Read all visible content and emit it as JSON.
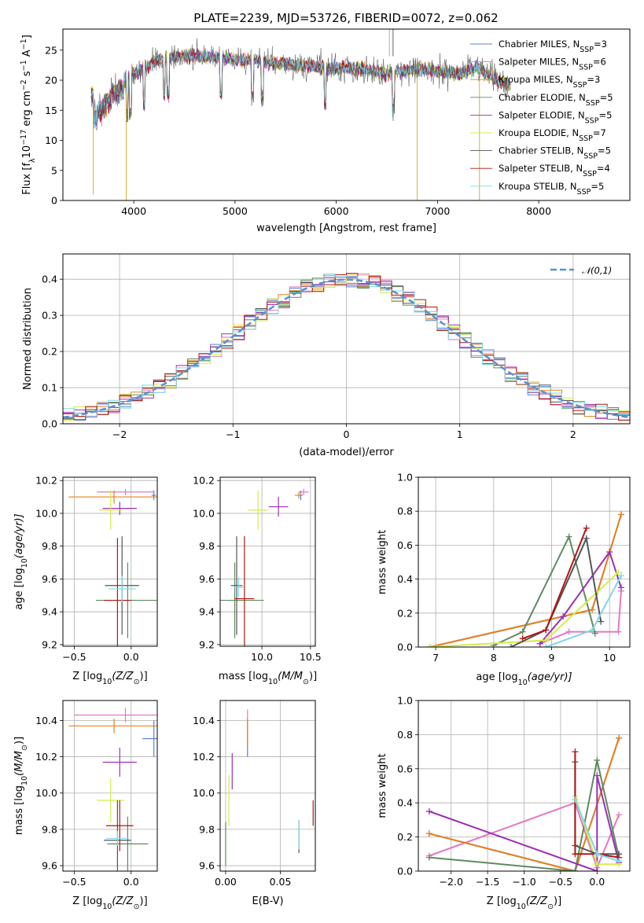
{
  "figure": {
    "title": "PLATE=2239, MJD=53726, FIBERID=0072, z=0.062"
  },
  "colors": {
    "Chabrier MILES": "#5b7fd6",
    "Salpeter MILES": "#e377c2",
    "Kroupa MILES": "#e8821f",
    "Chabrier ELODIE": "#5f8a5f",
    "Salpeter ELODIE": "#9b30b3",
    "Kroupa ELODIE": "#d4ec4a",
    "Chabrier STELIB": "#555555",
    "Salpeter STELIB": "#b01616",
    "Kroupa STELIB": "#7fd8e4"
  },
  "chart_data": [
    {
      "id": "spectrum",
      "type": "line",
      "xlabel": "wavelength [Angstrom, rest frame]",
      "ylabel": "Flux [f",
      "ylabel_sub": "λ",
      "ylabel_rest": "10",
      "ylabel_exp": "−17",
      "ylabel_tail": " erg cm",
      "ylabel_exp2": "−2",
      "ylabel_tail2": " s",
      "ylabel_exp3": "−1",
      "ylabel_tail3": " A",
      "ylabel_exp4": "−1",
      "ylabel_end": "]",
      "xlim": [
        3300,
        8900
      ],
      "ylim": [
        0,
        28.5
      ],
      "xticks": [
        "4000",
        "5000",
        "6000",
        "7000",
        "8000"
      ],
      "xtick_values": [
        4000,
        5000,
        6000,
        7000,
        8000
      ],
      "yticks": [
        "0",
        "5",
        "10",
        "15",
        "20",
        "25"
      ],
      "ytick_values": [
        0,
        5,
        10,
        15,
        20,
        25
      ],
      "continuum": [
        [
          3600,
          15
        ],
        [
          3700,
          17
        ],
        [
          3800,
          19
        ],
        [
          3900,
          20
        ],
        [
          4000,
          21
        ],
        [
          4100,
          22
        ],
        [
          4200,
          23
        ],
        [
          4300,
          23.5
        ],
        [
          4500,
          24
        ],
        [
          4700,
          24
        ],
        [
          5000,
          23.5
        ],
        [
          5300,
          23
        ],
        [
          5600,
          22.5
        ],
        [
          5900,
          22
        ],
        [
          6200,
          22
        ],
        [
          6500,
          21
        ],
        [
          6800,
          22
        ],
        [
          7000,
          21.5
        ],
        [
          7200,
          21
        ],
        [
          7400,
          22
        ],
        [
          7600,
          20
        ],
        [
          7700,
          19
        ]
      ],
      "legend": [
        {
          "model": "Chabrier MILES",
          "label": "Chabrier MILES, N",
          "sub": "SSP",
          "value": "=3"
        },
        {
          "model": "Salpeter MILES",
          "label": "Salpeter MILES, N",
          "sub": "SSP",
          "value": "=6"
        },
        {
          "model": "Kroupa MILES",
          "label": "Kroupa MILES, N",
          "sub": "SSP",
          "value": "=3"
        },
        {
          "model": "Chabrier ELODIE",
          "label": "Chabrier ELODIE, N",
          "sub": "SSP",
          "value": "=5"
        },
        {
          "model": "Salpeter ELODIE",
          "label": "Salpeter ELODIE, N",
          "sub": "SSP",
          "value": "=5"
        },
        {
          "model": "Kroupa ELODIE",
          "label": "Kroupa ELODIE, N",
          "sub": "SSP",
          "value": "=7"
        },
        {
          "model": "Chabrier STELIB",
          "label": "Chabrier STELIB, N",
          "sub": "SSP",
          "value": "=5"
        },
        {
          "model": "Salpeter STELIB",
          "label": "Salpeter STELIB, N",
          "sub": "SSP",
          "value": "=4"
        },
        {
          "model": "Kroupa STELIB",
          "label": "Kroupa STELIB, N",
          "sub": "SSP",
          "value": "=5"
        }
      ]
    },
    {
      "id": "residuals",
      "type": "line",
      "xlabel": "(data-model)/error",
      "ylabel": "Normed distribution",
      "xlim": [
        -2.5,
        2.5
      ],
      "ylim": [
        0,
        0.47
      ],
      "xticks": [
        "−2",
        "−1",
        "0",
        "1",
        "2"
      ],
      "xtick_values": [
        -2,
        -1,
        0,
        1,
        2
      ],
      "yticks": [
        "0.0",
        "0.1",
        "0.2",
        "0.3",
        "0.4"
      ],
      "ytick_values": [
        0,
        0.1,
        0.2,
        0.3,
        0.4
      ],
      "bin_width": 0.1,
      "reference": {
        "label": "𝒩(0,1)",
        "mean": 0,
        "sigma": 1,
        "color": "#5b8fd6"
      }
    },
    {
      "id": "age-vs-Z",
      "type": "scatter",
      "xlabel": "Z [log",
      "xlabel_sub": "10",
      "xlabel_rest": "(Z/Z",
      "xlabel_sub2": "⊙",
      "xlabel_end": ")]",
      "ylabel": "age  [log",
      "ylabel_sub": "10",
      "ylabel_rest": "(age/yr)]",
      "xlim": [
        -0.6,
        0.23
      ],
      "ylim": [
        9.19,
        10.22
      ],
      "xticks": [
        "−0.5",
        "0.0"
      ],
      "xtick_values": [
        -0.5,
        0
      ],
      "yticks": [
        "9.2",
        "9.4",
        "9.6",
        "9.8",
        "10.0",
        "10.2"
      ],
      "ytick_values": [
        9.2,
        9.4,
        9.6,
        9.8,
        10.0,
        10.2
      ],
      "points": [
        {
          "model": "Chabrier MILES",
          "x": 0.2,
          "y": 10.11,
          "xerr": 0.02,
          "yerr": 0.03
        },
        {
          "model": "Salpeter MILES",
          "x": -0.05,
          "y": 10.13,
          "xerr": 0.25,
          "yerr": 0.02
        },
        {
          "model": "Kroupa MILES",
          "x": -0.15,
          "y": 10.1,
          "xerr": 0.4,
          "yerr": 0.04
        },
        {
          "model": "Chabrier ELODIE",
          "x": -0.03,
          "y": 9.47,
          "xerr": 0.28,
          "yerr": 0.23
        },
        {
          "model": "Salpeter ELODIE",
          "x": -0.1,
          "y": 10.03,
          "xerr": 0.15,
          "yerr": 0.04
        },
        {
          "model": "Kroupa ELODIE",
          "x": -0.18,
          "y": 10.02,
          "xerr": 0.1,
          "yerr": 0.12
        },
        {
          "model": "Chabrier STELIB",
          "x": -0.08,
          "y": 9.56,
          "xerr": 0.15,
          "yerr": 0.3
        },
        {
          "model": "Salpeter STELIB",
          "x": -0.12,
          "y": 9.47,
          "xerr": 0.12,
          "yerr": 0.38
        },
        {
          "model": "Kroupa STELIB",
          "x": -0.08,
          "y": 9.54,
          "xerr": 0.12,
          "yerr": 0.08
        }
      ]
    },
    {
      "id": "age-vs-mass",
      "type": "scatter",
      "xlabel": "mass [log",
      "xlabel_sub": "10",
      "xlabel_rest": "(M/M",
      "xlabel_sub2": "⊙",
      "xlabel_end": ")]",
      "xlim": [
        9.57,
        10.55
      ],
      "ylim": [
        9.19,
        10.22
      ],
      "xticks": [
        "10.0",
        "10.5"
      ],
      "xtick_values": [
        10.0,
        10.5
      ],
      "yticks": [
        "9.2",
        "9.4",
        "9.6",
        "9.8",
        "10.0",
        "10.2"
      ],
      "ytick_values": [
        9.2,
        9.4,
        9.6,
        9.8,
        10.0,
        10.2
      ],
      "points": [
        {
          "model": "Chabrier MILES",
          "x": 10.4,
          "y": 10.11,
          "xerr": 0.02,
          "yerr": 0.03
        },
        {
          "model": "Salpeter MILES",
          "x": 10.43,
          "y": 10.13,
          "xerr": 0.05,
          "yerr": 0.02
        },
        {
          "model": "Kroupa MILES",
          "x": 10.38,
          "y": 10.11,
          "xerr": 0.04,
          "yerr": 0.02
        },
        {
          "model": "Chabrier ELODIE",
          "x": 9.72,
          "y": 9.47,
          "xerr": 0.3,
          "yerr": 0.23
        },
        {
          "model": "Salpeter ELODIE",
          "x": 10.17,
          "y": 10.04,
          "xerr": 0.1,
          "yerr": 0.06
        },
        {
          "model": "Kroupa ELODIE",
          "x": 9.96,
          "y": 10.02,
          "xerr": 0.1,
          "yerr": 0.12
        },
        {
          "model": "Chabrier STELIB",
          "x": 9.74,
          "y": 9.56,
          "xerr": 0.06,
          "yerr": 0.3
        },
        {
          "model": "Salpeter STELIB",
          "x": 9.82,
          "y": 9.48,
          "xerr": 0.1,
          "yerr": 0.38
        },
        {
          "model": "Kroupa STELIB",
          "x": 9.76,
          "y": 9.55,
          "xerr": 0.05,
          "yerr": 0.06
        }
      ]
    },
    {
      "id": "weight-vs-age",
      "type": "line",
      "xlabel": "age  [log",
      "xlabel_sub": "10",
      "xlabel_rest": "(age/yr)]",
      "ylabel": "mass weight",
      "xlim": [
        6.7,
        10.35
      ],
      "ylim": [
        0,
        1.0
      ],
      "xticks": [
        "7",
        "8",
        "9",
        "10"
      ],
      "xtick_values": [
        7,
        8,
        9,
        10
      ],
      "yticks": [
        "0.0",
        "0.2",
        "0.4",
        "0.6",
        "0.8",
        "1.0"
      ],
      "ytick_values": [
        0,
        0.2,
        0.4,
        0.6,
        0.8,
        1.0
      ],
      "series": [
        {
          "model": "Chabrier MILES",
          "x": [
            6.9,
            9.7,
            10.2
          ],
          "y": [
            0.0,
            0.22,
            0.78
          ]
        },
        {
          "model": "Salpeter MILES",
          "x": [
            8.8,
            9.3,
            10.15,
            10.2
          ],
          "y": [
            0.02,
            0.09,
            0.09,
            0.33
          ]
        },
        {
          "model": "Kroupa MILES",
          "x": [
            6.9,
            9.7,
            10.2
          ],
          "y": [
            0.0,
            0.22,
            0.78
          ]
        },
        {
          "model": "Chabrier ELODIE",
          "x": [
            8.0,
            8.5,
            9.3,
            9.75
          ],
          "y": [
            0.01,
            0.09,
            0.65,
            0.08
          ]
        },
        {
          "model": "Salpeter ELODIE",
          "x": [
            8.8,
            9.2,
            10.0,
            10.2
          ],
          "y": [
            0.02,
            0.18,
            0.56,
            0.35
          ]
        },
        {
          "model": "Kroupa ELODIE",
          "x": [
            6.9,
            8.9,
            10.15
          ],
          "y": [
            0.0,
            0.04,
            0.44
          ]
        },
        {
          "model": "Chabrier STELIB",
          "x": [
            8.3,
            8.9,
            9.6,
            9.85
          ],
          "y": [
            0.0,
            0.1,
            0.64,
            0.15
          ]
        },
        {
          "model": "Salpeter STELIB",
          "x": [
            8.5,
            8.9,
            9.6
          ],
          "y": [
            0.05,
            0.1,
            0.7
          ]
        },
        {
          "model": "Kroupa STELIB",
          "x": [
            8.9,
            9.7,
            10.2
          ],
          "y": [
            0.0,
            0.1,
            0.42
          ]
        }
      ]
    },
    {
      "id": "mass-vs-Z",
      "type": "scatter",
      "xlabel": "Z [log",
      "xlabel_sub": "10",
      "xlabel_rest": "(Z/Z",
      "xlabel_sub2": "⊙",
      "xlabel_end": ")]",
      "ylabel": "mass [log",
      "ylabel_sub": "10",
      "ylabel_rest": "(M/M",
      "ylabel_sub2": "⊙",
      "ylabel_end": ")]",
      "xlim": [
        -0.6,
        0.23
      ],
      "ylim": [
        9.57,
        10.51
      ],
      "xticks": [
        "−0.5",
        "0.0"
      ],
      "xtick_values": [
        -0.5,
        0
      ],
      "yticks": [
        "9.6",
        "9.8",
        "10.0",
        "10.2",
        "10.4"
      ],
      "ytick_values": [
        9.6,
        9.8,
        10.0,
        10.2,
        10.4
      ],
      "points": [
        {
          "model": "Chabrier MILES",
          "x": 0.2,
          "y": 10.3,
          "xerr": 0.1,
          "yerr": 0.1
        },
        {
          "model": "Salpeter MILES",
          "x": -0.05,
          "y": 10.43,
          "xerr": 0.45,
          "yerr": 0.04
        },
        {
          "model": "Kroupa MILES",
          "x": -0.15,
          "y": 10.37,
          "xerr": 0.4,
          "yerr": 0.04
        },
        {
          "model": "Chabrier ELODIE",
          "x": -0.03,
          "y": 9.72,
          "xerr": 0.18,
          "yerr": 0.15
        },
        {
          "model": "Salpeter ELODIE",
          "x": -0.1,
          "y": 10.17,
          "xerr": 0.15,
          "yerr": 0.08
        },
        {
          "model": "Kroupa ELODIE",
          "x": -0.18,
          "y": 9.96,
          "xerr": 0.12,
          "yerr": 0.12
        },
        {
          "model": "Chabrier STELIB",
          "x": -0.12,
          "y": 9.74,
          "xerr": 0.12,
          "yerr": 0.22
        },
        {
          "model": "Salpeter STELIB",
          "x": -0.1,
          "y": 9.82,
          "xerr": 0.12,
          "yerr": 0.14
        },
        {
          "model": "Kroupa STELIB",
          "x": -0.12,
          "y": 9.75,
          "xerr": 0.1,
          "yerr": 0.04
        }
      ]
    },
    {
      "id": "mass-vs-ebv",
      "type": "scatter",
      "xlabel": "E(B-V)",
      "xlim": [
        -0.005,
        0.082
      ],
      "ylim": [
        9.57,
        10.51
      ],
      "xticks": [
        "0.00",
        "0.05"
      ],
      "xtick_values": [
        0,
        0.05
      ],
      "yticks": [
        "9.6",
        "9.8",
        "10.0",
        "10.2",
        "10.4"
      ],
      "ytick_values": [
        9.6,
        9.8,
        10.0,
        10.2,
        10.4
      ],
      "points": [
        {
          "model": "Chabrier MILES",
          "x": 0.02,
          "y": 10.3,
          "xerr": 0,
          "yerr": 0.1
        },
        {
          "model": "Salpeter MILES",
          "x": 0.02,
          "y": 10.4,
          "xerr": 0,
          "yerr": 0.06
        },
        {
          "model": "Kroupa MILES",
          "x": 0.02,
          "y": 10.33,
          "xerr": 0,
          "yerr": 0.08
        },
        {
          "model": "Chabrier ELODIE",
          "x": 0.0,
          "y": 9.72,
          "xerr": 0,
          "yerr": 0.12
        },
        {
          "model": "Salpeter ELODIE",
          "x": 0.006,
          "y": 10.12,
          "xerr": 0,
          "yerr": 0.1
        },
        {
          "model": "Kroupa ELODIE",
          "x": 0.003,
          "y": 9.96,
          "xerr": 0,
          "yerr": 0.14
        },
        {
          "model": "Chabrier STELIB",
          "x": 0.067,
          "y": 9.76,
          "xerr": 0,
          "yerr": 0.09
        },
        {
          "model": "Salpeter STELIB",
          "x": 0.08,
          "y": 9.89,
          "xerr": 0,
          "yerr": 0.07
        },
        {
          "model": "Kroupa STELIB",
          "x": 0.067,
          "y": 9.77,
          "xerr": 0,
          "yerr": 0.08
        }
      ]
    },
    {
      "id": "weight-vs-Z",
      "type": "line",
      "xlabel": "Z [log",
      "xlabel_sub": "10",
      "xlabel_rest": "(Z/Z",
      "xlabel_sub2": "⊙",
      "xlabel_end": ")]",
      "ylabel": "mass weight",
      "xlim": [
        -2.45,
        0.45
      ],
      "ylim": [
        0,
        1.0
      ],
      "xticks": [
        "−2.0",
        "−1.5",
        "−1.0",
        "−0.5",
        "0.0"
      ],
      "xtick_values": [
        -2.0,
        -1.5,
        -1.0,
        -0.5,
        0
      ],
      "yticks": [
        "0.0",
        "0.2",
        "0.4",
        "0.6",
        "0.8",
        "1.0"
      ],
      "ytick_values": [
        0,
        0.2,
        0.4,
        0.6,
        0.8,
        1.0
      ],
      "series": [
        {
          "model": "Chabrier MILES",
          "x": [
            -2.3,
            -0.3,
            0.3
          ],
          "y": [
            0.22,
            0.0,
            0.78
          ]
        },
        {
          "model": "Salpeter MILES",
          "x": [
            -2.3,
            -0.3,
            0.0,
            0.3
          ],
          "y": [
            0.09,
            0.4,
            0.02,
            0.33
          ]
        },
        {
          "model": "Kroupa MILES",
          "x": [
            -2.3,
            -0.3,
            0.3
          ],
          "y": [
            0.22,
            0.0,
            0.78
          ]
        },
        {
          "model": "Chabrier ELODIE",
          "x": [
            -2.3,
            -0.3,
            0.0,
            0.3
          ],
          "y": [
            0.08,
            0.0,
            0.65,
            0.08
          ]
        },
        {
          "model": "Salpeter ELODIE",
          "x": [
            -2.3,
            0.0,
            0.0,
            0.3
          ],
          "y": [
            0.35,
            0.0,
            0.56,
            0.05
          ]
        },
        {
          "model": "Kroupa ELODIE",
          "x": [
            -0.3,
            0.0,
            0.3
          ],
          "y": [
            0.44,
            0.04,
            0.04
          ]
        },
        {
          "model": "Chabrier STELIB",
          "x": [
            -0.3,
            -0.3,
            0.0,
            0.3
          ],
          "y": [
            0.64,
            0.15,
            0.1,
            0.1
          ]
        },
        {
          "model": "Salpeter STELIB",
          "x": [
            -0.3,
            -0.3,
            0.0,
            0.3
          ],
          "y": [
            0.7,
            0.1,
            0.1,
            0.08
          ]
        },
        {
          "model": "Kroupa STELIB",
          "x": [
            -0.3,
            0.0,
            0.3
          ],
          "y": [
            0.42,
            0.1,
            0.06
          ]
        }
      ]
    }
  ]
}
